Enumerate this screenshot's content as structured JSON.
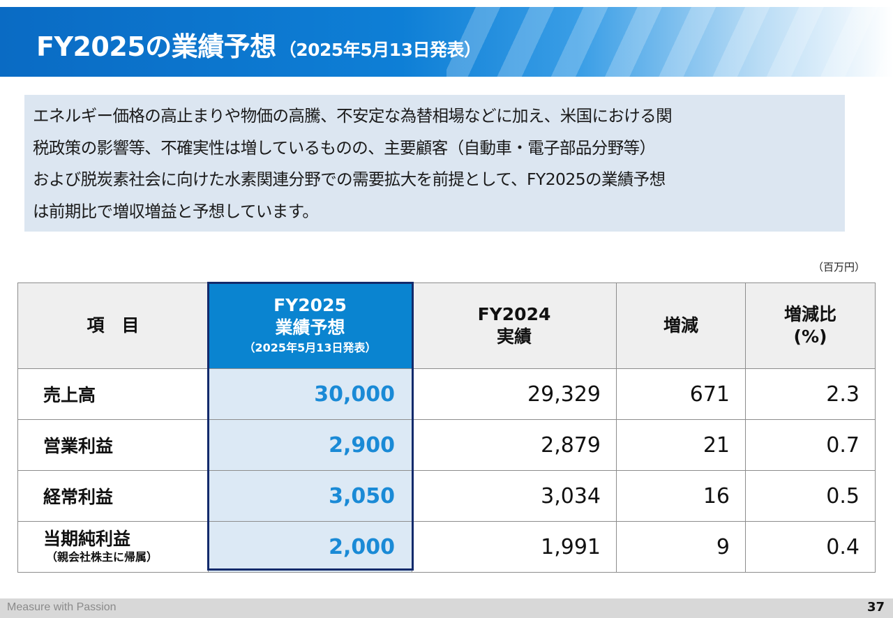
{
  "title": {
    "main": "FY2025の業績予想",
    "sub": "（2025年5月13日発表）"
  },
  "intro": {
    "lines": [
      "エネルギー価格の高止まりや物価の高騰、不安定な為替相場などに加え、米国における関",
      "税政策の影響等、不確実性は増しているものの、主要顧客（自動車・電子部品分野等）",
      "および脱炭素社会に向けた水素関連分野での需要拡大を前提として、FY2025の業績予想",
      "は前期比で増収増益と予想しています。"
    ]
  },
  "unit": "（百万円）",
  "table": {
    "headers": {
      "item": "項　目",
      "fy2025_line1": "FY2025",
      "fy2025_line2": "業績予想",
      "fy2025_line3": "（2025年5月13日発表）",
      "fy2024_line1": "FY2024",
      "fy2024_line2": "実績",
      "change": "増減",
      "ratio_line1": "増減比",
      "ratio_line2": "(%)"
    },
    "rows": [
      {
        "label": "売上高",
        "note": "",
        "fy2025": "30,000",
        "fy2024": "29,329",
        "change": "671",
        "ratio": "2.3"
      },
      {
        "label": "営業利益",
        "note": "",
        "fy2025": "2,900",
        "fy2024": "2,879",
        "change": "21",
        "ratio": "0.7"
      },
      {
        "label": "経常利益",
        "note": "",
        "fy2025": "3,050",
        "fy2024": "3,034",
        "change": "16",
        "ratio": "0.5"
      },
      {
        "label": "当期純利益",
        "note": "（親会社株主に帰属）",
        "fy2025": "2,000",
        "fy2024": "1,991",
        "change": "9",
        "ratio": "0.4"
      }
    ]
  },
  "footer": {
    "slogan": "Measure with Passion",
    "page": "37"
  },
  "colors": {
    "banner": "#0a6bc4",
    "highlight_header": "#0a84d0",
    "highlight_values": "#1a8ad6",
    "highlight_bg": "#dce9f5",
    "intro_bg": "#dce6f1"
  }
}
